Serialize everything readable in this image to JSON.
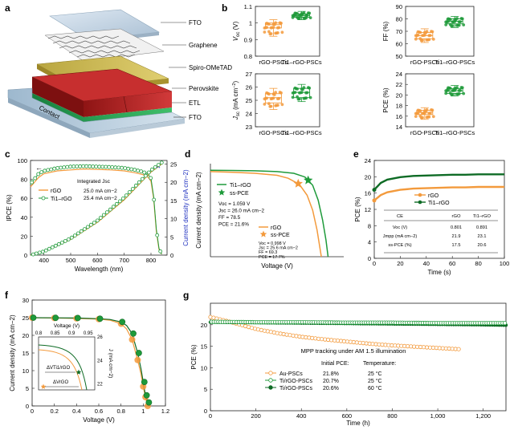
{
  "colors": {
    "orange": "#f39a3c",
    "green": "#1e9a3a",
    "dgreen": "#0e6b25",
    "blue": "#1d2fbf",
    "gray": "#555555"
  },
  "panel_a": {
    "letter": "a",
    "layers": [
      "FTO",
      "Graphene",
      "Spiro-OMeTAD",
      "Perovskite",
      "ETL",
      "FTO"
    ],
    "contact": "Contact"
  },
  "chart_data": [
    {
      "id": "b1",
      "type": "box",
      "panel": "b",
      "ylabel": "Voc (V)",
      "ylabel_main": "V",
      "ylabel_sub": "oc",
      "ylabel_unit": " (V)",
      "ylim": [
        0.8,
        1.1
      ],
      "yticks": [
        0.8,
        0.9,
        1.0,
        1.1
      ],
      "categories": [
        "rGO-PSCs",
        "Ti1–rGO-PSCs"
      ],
      "boxes": [
        {
          "q1": 0.97,
          "median": 0.99,
          "q3": 1.0,
          "min": 0.92,
          "max": 1.02
        },
        {
          "q1": 1.035,
          "median": 1.045,
          "q3": 1.055,
          "min": 1.02,
          "max": 1.07
        }
      ]
    },
    {
      "id": "b2",
      "type": "box",
      "panel": "b",
      "ylabel": "FF (%)",
      "ylim": [
        50,
        90
      ],
      "yticks": [
        50,
        60,
        70,
        80,
        90
      ],
      "categories": [
        "rGO-PSCs",
        "Ti1–rGO-PSCs"
      ],
      "boxes": [
        {
          "q1": 64,
          "median": 66.5,
          "q3": 69,
          "min": 61,
          "max": 72
        },
        {
          "q1": 76,
          "median": 78,
          "q3": 80,
          "min": 73,
          "max": 82
        }
      ]
    },
    {
      "id": "b3",
      "type": "box",
      "panel": "b",
      "ylabel": "Jsc (mA cm−2)",
      "ylabel_main": "J",
      "ylabel_sub": "sc",
      "ylabel_unit": " (mA cm",
      "ylim": [
        23,
        27
      ],
      "yticks": [
        23,
        24,
        25,
        26,
        27
      ],
      "categories": [
        "rGO-PSCs",
        "Ti1–rGO-PSCs"
      ],
      "boxes": [
        {
          "q1": 24.8,
          "median": 25.2,
          "q3": 25.5,
          "min": 24.3,
          "max": 25.9
        },
        {
          "q1": 25.2,
          "median": 25.6,
          "q3": 25.9,
          "min": 24.9,
          "max": 26.2
        }
      ]
    },
    {
      "id": "b4",
      "type": "box",
      "panel": "b",
      "ylabel": "PCE (%)",
      "ylim": [
        14,
        24
      ],
      "yticks": [
        14,
        16,
        18,
        20,
        22,
        24
      ],
      "categories": [
        "rGO-PSCs",
        "Ti1–rGO-PSCs"
      ],
      "boxes": [
        {
          "q1": 16.3,
          "median": 16.7,
          "q3": 17.1,
          "min": 15.4,
          "max": 17.6
        },
        {
          "q1": 20.3,
          "median": 20.8,
          "q3": 21.2,
          "min": 19.8,
          "max": 21.8
        }
      ]
    },
    {
      "id": "c",
      "type": "line",
      "panel": "c",
      "xlabel": "Wavelength (nm)",
      "ylabel": "IPCE (%)",
      "y2label": "Current density (mA cm−2)",
      "xlim": [
        350,
        860
      ],
      "xticks": [
        400,
        500,
        600,
        700,
        800
      ],
      "ylim": [
        0,
        100
      ],
      "yticks": [
        0,
        20,
        40,
        60,
        80,
        100
      ],
      "y2lim": [
        0,
        26
      ],
      "y2ticks": [
        0,
        5,
        10,
        15,
        20,
        25
      ],
      "legend": [
        "rGO",
        "Ti1–rGO"
      ],
      "integrated": {
        "label": "Integrated Jsc",
        "values": [
          "25.0 mA cm−2",
          "25.4 mA cm−2"
        ]
      },
      "series": [
        {
          "name": "rGO",
          "x": [
            350,
            380,
            400,
            450,
            500,
            550,
            600,
            650,
            700,
            740,
            770,
            790,
            800,
            810,
            820,
            830,
            840
          ],
          "y": [
            72,
            82,
            86,
            89,
            90,
            91,
            90.5,
            90,
            89,
            87,
            85,
            82,
            78,
            60,
            25,
            6,
            1
          ]
        },
        {
          "name": "Ti1–rGO",
          "x": [
            350,
            380,
            400,
            450,
            500,
            550,
            600,
            650,
            700,
            740,
            770,
            790,
            800,
            810,
            820,
            830,
            840
          ],
          "y": [
            75,
            86,
            89,
            92,
            93.5,
            94,
            93.5,
            93,
            92,
            90,
            88,
            85,
            81,
            62,
            27,
            7,
            1
          ]
        },
        {
          "name": "rGO integrated",
          "x": [
            350,
            400,
            500,
            600,
            700,
            800,
            840
          ],
          "y2": [
            0,
            0.9,
            4.3,
            9.0,
            15.2,
            22.8,
            25.0
          ]
        },
        {
          "name": "Ti1–rGO integrated",
          "x": [
            350,
            400,
            500,
            600,
            700,
            800,
            840
          ],
          "y2": [
            0,
            1.0,
            4.6,
            9.5,
            15.8,
            23.3,
            25.4
          ]
        }
      ]
    },
    {
      "id": "d",
      "type": "line",
      "panel": "d",
      "xlabel": "Voltage (V)",
      "ylabel": "Current density (mA cm−2)",
      "xlim": [
        0,
        1.2
      ],
      "legend": [
        "Ti1–rGO",
        "ss-PCE",
        "rGO",
        "ss-PCE"
      ],
      "params_ti": [
        "Voc = 1.059 V",
        "Jsc = 26.0 mA cm−2",
        "FF = 78.5",
        "PCE = 21.6%"
      ],
      "params_rgo": [
        "Voc = 0.998 V",
        "Jsc = 25.6 mA cm−2",
        "FF = 69.3",
        "PCE = 17.7%"
      ],
      "series": [
        {
          "name": "Ti1–rGO",
          "x": [
            0,
            0.2,
            0.4,
            0.6,
            0.75,
            0.85,
            0.92,
            0.97,
            1.01,
            1.04,
            1.059
          ],
          "y": [
            26.0,
            25.95,
            25.85,
            25.6,
            25.1,
            24.0,
            21.5,
            17.0,
            11.0,
            5.0,
            0
          ]
        },
        {
          "name": "rGO",
          "x": [
            0,
            0.2,
            0.4,
            0.6,
            0.7,
            0.8,
            0.87,
            0.92,
            0.96,
            0.998
          ],
          "y": [
            25.6,
            25.4,
            25.1,
            24.5,
            23.6,
            21.8,
            18.5,
            14.0,
            8.0,
            0
          ]
        },
        {
          "name": "ss-PCE Ti1–rGO",
          "x": [
            0.88
          ],
          "y": [
            23.0
          ]
        },
        {
          "name": "ss-PCE rGO",
          "x": [
            0.79
          ],
          "y": [
            22.0
          ]
        }
      ]
    },
    {
      "id": "e",
      "type": "line",
      "panel": "e",
      "xlabel": "Time (s)",
      "ylabel": "PCE (%)",
      "xlim": [
        0,
        100
      ],
      "xticks": [
        0,
        20,
        40,
        60,
        80,
        100
      ],
      "ylim": [
        0,
        24
      ],
      "yticks": [
        0,
        4,
        8,
        12,
        16,
        20,
        24
      ],
      "legend": [
        "rGO",
        "Ti1–rGO"
      ],
      "table": {
        "header": [
          "CE",
          "rGO",
          "Ti1–rGO"
        ],
        "rows": [
          [
            "Voc (V)",
            "0.801",
            "0.891"
          ],
          [
            "Jmpp (mA cm−2)",
            "21.9",
            "23.1"
          ],
          [
            "ss-PCE (%)",
            "17.5",
            "20.6"
          ]
        ]
      },
      "series": [
        {
          "name": "rGO",
          "x": [
            0,
            5,
            10,
            20,
            30,
            40,
            50,
            60,
            70,
            80,
            90,
            100
          ],
          "y": [
            14.2,
            15.5,
            16.2,
            16.8,
            17.1,
            17.2,
            17.3,
            17.4,
            17.4,
            17.5,
            17.5,
            17.5
          ]
        },
        {
          "name": "Ti1–rGO",
          "x": [
            0,
            5,
            10,
            20,
            30,
            40,
            50,
            60,
            70,
            80,
            90,
            100
          ],
          "y": [
            16.8,
            18.5,
            19.3,
            19.9,
            20.2,
            20.3,
            20.4,
            20.5,
            20.5,
            20.6,
            20.6,
            20.6
          ]
        }
      ]
    },
    {
      "id": "f",
      "type": "line",
      "panel": "f",
      "xlabel": "Voltage (V)",
      "ylabel": "Current density (mA cm−2)",
      "xlim": [
        0,
        1.2
      ],
      "xticks": [
        0,
        0.2,
        0.4,
        0.6,
        0.8,
        1.0,
        1.2
      ],
      "ylim": [
        0,
        30
      ],
      "yticks": [
        0,
        5,
        10,
        15,
        20,
        25,
        30
      ],
      "inset": {
        "xlabel": "Voltage (V)",
        "ylabel": "J (mA cm−2)",
        "xticks": [
          0.8,
          0.85,
          0.9,
          0.95
        ],
        "yticks": [
          22,
          24,
          26
        ],
        "labels": [
          "ΔVTi1/rGO",
          "ΔVrGO"
        ]
      },
      "series": [
        {
          "name": "rGO",
          "x": [
            0,
            0.2,
            0.4,
            0.6,
            0.7,
            0.8,
            0.85,
            0.9,
            0.95,
            0.98,
            1.0,
            1.02,
            1.04
          ],
          "y": [
            25.0,
            24.9,
            24.8,
            24.6,
            24.3,
            23.3,
            21.8,
            18.8,
            13.0,
            9.0,
            5.5,
            2.5,
            0
          ]
        },
        {
          "name": "Ti1–rGO",
          "x": [
            0,
            0.2,
            0.4,
            0.6,
            0.7,
            0.8,
            0.85,
            0.9,
            0.95,
            0.98,
            1.0,
            1.02,
            1.05
          ],
          "y": [
            25.0,
            24.95,
            24.9,
            24.7,
            24.5,
            23.8,
            22.8,
            20.5,
            15.0,
            10.5,
            6.8,
            3.0,
            0
          ]
        }
      ]
    },
    {
      "id": "g",
      "type": "line",
      "panel": "g",
      "xlabel": "Time (h)",
      "ylabel": "PCE (%)",
      "xlim": [
        0,
        1300
      ],
      "xticks": [
        0,
        200,
        400,
        600,
        800,
        1000,
        1200
      ],
      "ylim": [
        0,
        25
      ],
      "yticks": [
        0,
        5,
        10,
        15,
        20
      ],
      "annotation": "MPP tracking under AM 1.5 illumination",
      "legend_heads": [
        "Initial PCE:",
        "Temperature:"
      ],
      "series": [
        {
          "name": "Au-PSCs",
          "initial": "21.8%",
          "temp": "25 °C",
          "x": [
            0,
            100,
            200,
            300,
            400,
            500,
            600,
            700,
            800,
            900,
            1000,
            1100
          ],
          "y": [
            21.8,
            20.5,
            19.0,
            18.0,
            17.2,
            16.6,
            16.1,
            15.6,
            15.2,
            14.9,
            14.6,
            14.3
          ]
        },
        {
          "name": "Ti/rGO-PSCs",
          "initial": "20.7%",
          "temp": "25 °C",
          "x": [
            0,
            200,
            400,
            600,
            800,
            1000,
            1200,
            1300
          ],
          "y": [
            20.7,
            20.6,
            20.6,
            20.5,
            20.5,
            20.4,
            20.4,
            20.4
          ]
        },
        {
          "name": "Ti/rGO-PSCs",
          "initial": "20.6%",
          "temp": "60 °C",
          "x": [
            0,
            200,
            400,
            600,
            800,
            1000,
            1200,
            1300
          ],
          "y": [
            20.6,
            20.5,
            20.4,
            20.3,
            20.2,
            20.1,
            20.0,
            19.9
          ]
        }
      ]
    }
  ]
}
